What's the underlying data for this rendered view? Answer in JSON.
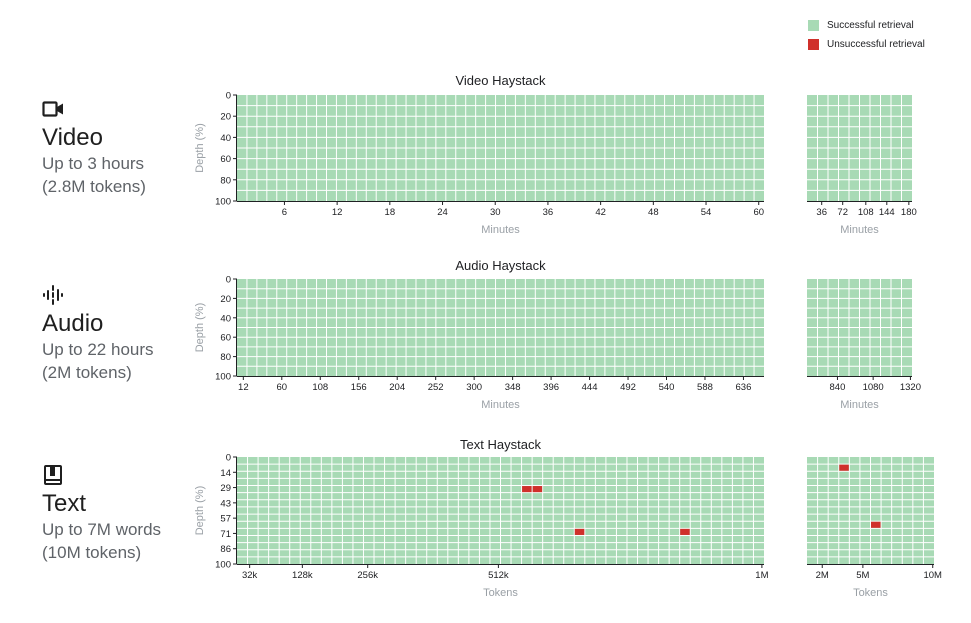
{
  "colors": {
    "success": "#a8dab5",
    "failure": "#d0302b",
    "gridline": "#ffffff",
    "axis": "#202124",
    "axis_label": "#9aa0a6"
  },
  "legend": {
    "success_label": "Successful retrieval",
    "failure_label": "Unsuccessful retrieval"
  },
  "modalities": [
    {
      "icon": "video-camera-icon",
      "title": "Video",
      "line1": "Up to 3 hours",
      "line2": "(2.8M tokens)"
    },
    {
      "icon": "audio-waveform-icon",
      "title": "Audio",
      "line1": "Up to 22 hours",
      "line2": "(2M tokens)"
    },
    {
      "icon": "book-icon",
      "title": "Text",
      "line1": "Up to 7M words",
      "line2": "(10M tokens)"
    }
  ],
  "chart_data": [
    {
      "type": "heatmap",
      "title": "Video Haystack",
      "ylabel": "Depth (%)",
      "y_ticks": [
        "0",
        "20",
        "40",
        "60",
        "80",
        "100"
      ],
      "panels": [
        {
          "xlabel": "Minutes",
          "cols": 53,
          "rows": 10,
          "x_ticks": [
            "6",
            "12",
            "18",
            "24",
            "30",
            "36",
            "42",
            "48",
            "54",
            "60"
          ],
          "tick_pos": [
            0.09,
            0.19,
            0.29,
            0.39,
            0.49,
            0.59,
            0.69,
            0.79,
            0.89,
            0.99
          ],
          "failures": []
        },
        {
          "xlabel": "Minutes",
          "cols": 10,
          "rows": 10,
          "x_ticks": [
            "36",
            "72",
            "108",
            "144",
            "180"
          ],
          "tick_pos": [
            0.14,
            0.34,
            0.56,
            0.76,
            0.97
          ],
          "failures": []
        }
      ]
    },
    {
      "type": "heatmap",
      "title": "Audio Haystack",
      "ylabel": "Depth (%)",
      "y_ticks": [
        "0",
        "20",
        "40",
        "60",
        "80",
        "100"
      ],
      "panels": [
        {
          "xlabel": "Minutes",
          "cols": 53,
          "rows": 10,
          "x_ticks": [
            "12",
            "60",
            "108",
            "156",
            "204",
            "252",
            "300",
            "348",
            "396",
            "444",
            "492",
            "540",
            "588",
            "636"
          ],
          "tick_pos": [
            0.012,
            0.085,
            0.158,
            0.231,
            0.304,
            0.377,
            0.45,
            0.523,
            0.596,
            0.669,
            0.742,
            0.815,
            0.888,
            0.961
          ],
          "failures": []
        },
        {
          "xlabel": "Minutes",
          "cols": 10,
          "rows": 10,
          "x_ticks": [
            "840",
            "1080",
            "1320"
          ],
          "tick_pos": [
            0.29,
            0.63,
            0.985
          ],
          "failures": []
        }
      ]
    },
    {
      "type": "heatmap",
      "title": "Text Haystack",
      "ylabel": "Depth (%)",
      "y_ticks": [
        "0",
        "14",
        "29",
        "43",
        "57",
        "71",
        "86",
        "100"
      ],
      "panels": [
        {
          "xlabel": "Tokens",
          "cols": 50,
          "rows": 15,
          "x_ticks": [
            "32k",
            "128k",
            "256k",
            "512k",
            "1M"
          ],
          "tick_pos": [
            0.024,
            0.124,
            0.248,
            0.496,
            0.996
          ],
          "failures": [
            [
              27,
              4
            ],
            [
              28,
              4
            ],
            [
              32,
              10
            ],
            [
              42,
              10
            ]
          ]
        },
        {
          "xlabel": "Tokens",
          "cols": 12,
          "rows": 15,
          "x_ticks": [
            "2M",
            "5M",
            "10M"
          ],
          "tick_pos": [
            0.12,
            0.44,
            0.99
          ],
          "failures": [
            [
              3,
              1
            ],
            [
              6,
              9
            ]
          ]
        }
      ]
    }
  ]
}
